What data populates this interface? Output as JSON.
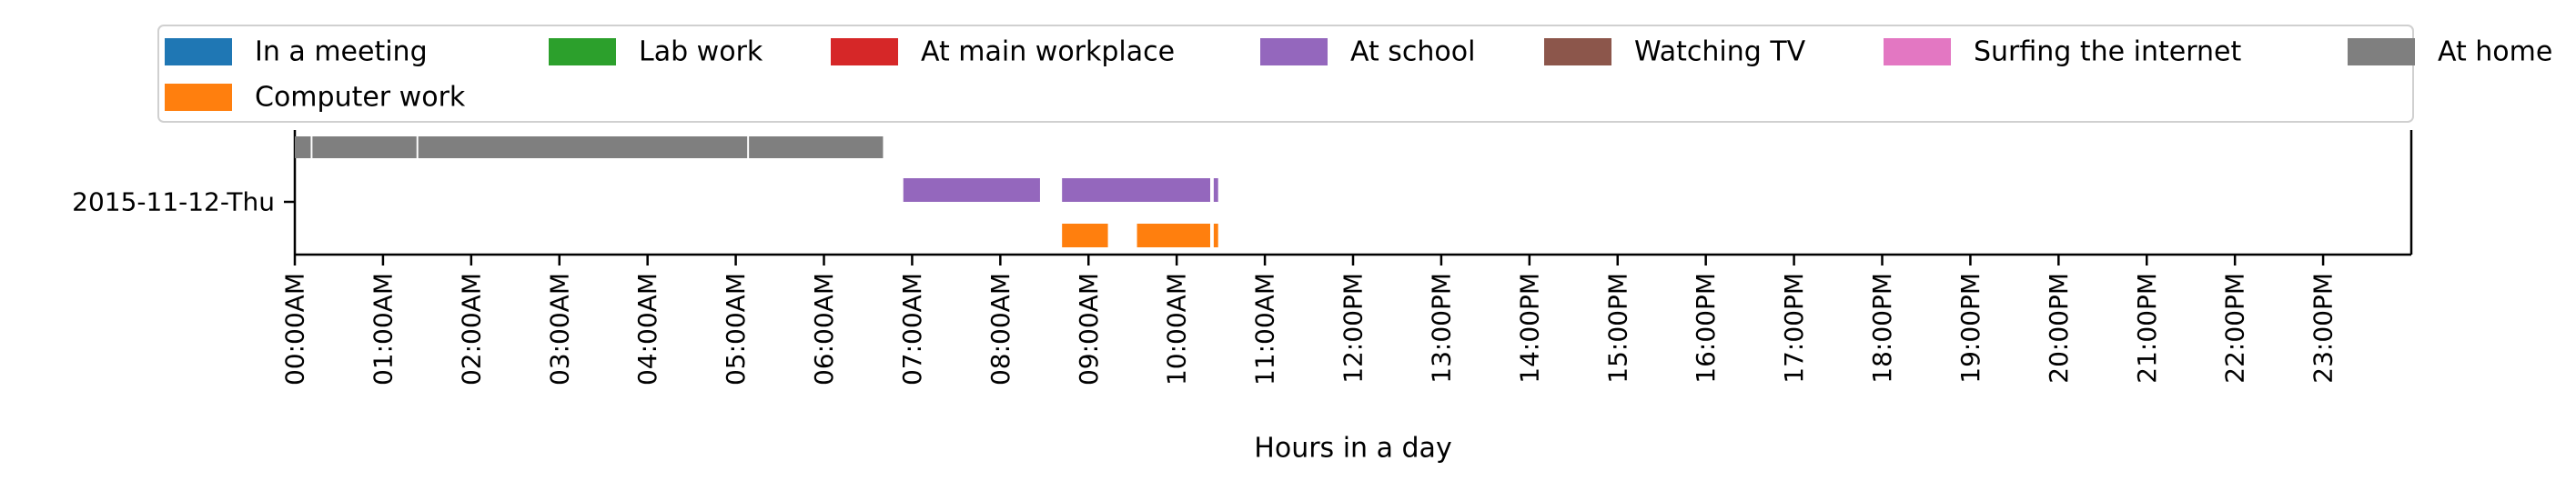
{
  "chart_data": {
    "type": "bar",
    "subtype": "timeline",
    "xlabel": "Hours in a day",
    "ylabel": "",
    "xlim_hours": [
      0,
      24
    ],
    "x_tick_labels": [
      "00:00AM",
      "01:00AM",
      "02:00AM",
      "03:00AM",
      "04:00AM",
      "05:00AM",
      "06:00AM",
      "07:00AM",
      "08:00AM",
      "09:00AM",
      "10:00AM",
      "11:00AM",
      "12:00PM",
      "13:00PM",
      "14:00PM",
      "15:00PM",
      "16:00PM",
      "17:00PM",
      "18:00PM",
      "19:00PM",
      "20:00PM",
      "21:00PM",
      "22:00PM",
      "23:00PM"
    ],
    "y_tick_label": "2015-11-12-Thu",
    "legend_position": "top",
    "legend": [
      {
        "name": "In a meeting",
        "color": "#1f77b4"
      },
      {
        "name": "Lab work",
        "color": "#2ca02c"
      },
      {
        "name": "At main workplace",
        "color": "#d62728"
      },
      {
        "name": "At school",
        "color": "#9467bd"
      },
      {
        "name": "Watching TV",
        "color": "#8c564b"
      },
      {
        "name": "Surfing the internet",
        "color": "#e377c2"
      },
      {
        "name": "At home",
        "color": "#7f7f7f"
      },
      {
        "name": "Computer work",
        "color": "#ff7f0e"
      }
    ],
    "series": [
      {
        "name": "At home",
        "color": "#7f7f7f",
        "lane": "top",
        "intervals_hours": [
          [
            0.0,
            0.18
          ],
          [
            0.2,
            1.38
          ],
          [
            1.4,
            5.13
          ],
          [
            5.15,
            6.67
          ]
        ]
      },
      {
        "name": "At school",
        "color": "#9467bd",
        "lane": "middle",
        "intervals_hours": [
          [
            6.9,
            8.45
          ],
          [
            8.7,
            10.38
          ],
          [
            10.42,
            10.47
          ]
        ]
      },
      {
        "name": "Computer work",
        "color": "#ff7f0e",
        "lane": "bottom",
        "intervals_hours": [
          [
            8.7,
            9.22
          ],
          [
            9.55,
            10.38
          ],
          [
            10.42,
            10.47
          ]
        ]
      }
    ]
  }
}
